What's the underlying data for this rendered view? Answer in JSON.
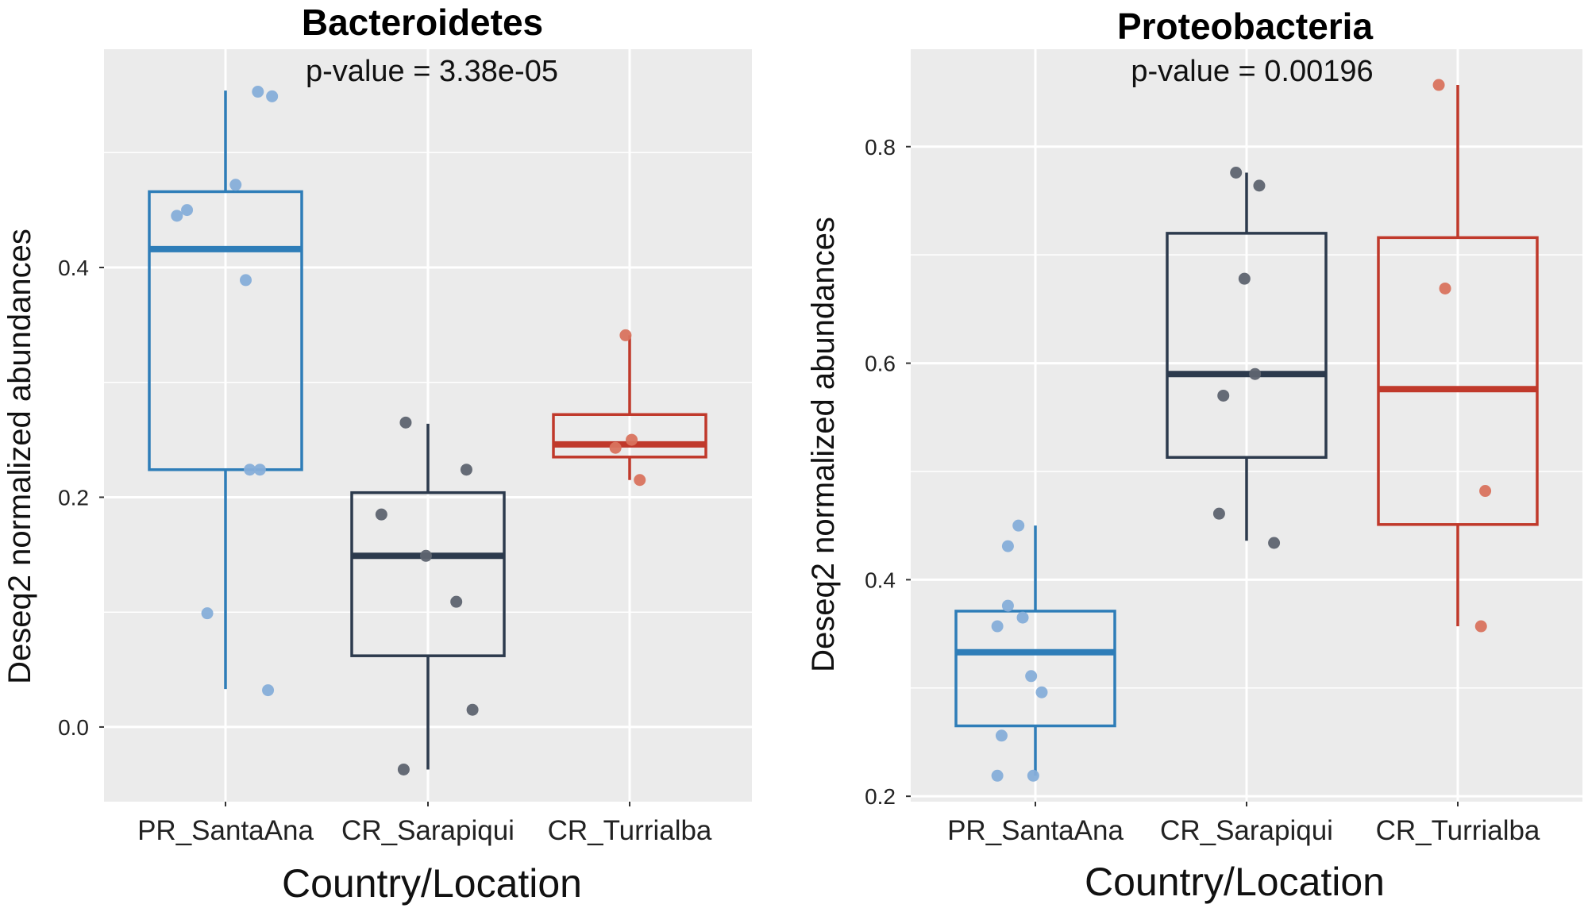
{
  "colors": {
    "panel_bg": "#EBEBEB",
    "grid": "#FFFFFF",
    "PR_SantaAna": "#2E7DB8",
    "PR_SantaAna_points": "#86AED9",
    "CR_Sarapiqui": "#2C3A4D",
    "CR_Sarapiqui_points": "#5E6470",
    "CR_Turrialba": "#C0392B",
    "CR_Turrialba_points": "#D9735E"
  },
  "chart_data": [
    {
      "type": "boxplot",
      "title": "Bacteroidetes",
      "annotation": "p-value = 3.38e-05",
      "xlabel": "Country/Location",
      "ylabel": "Deseq2 normalized abundances",
      "categories": [
        "PR_SantaAna",
        "CR_Sarapiqui",
        "CR_Turrialba"
      ],
      "ylim": [
        -0.065,
        0.59
      ],
      "yticks": [
        0.0,
        0.2,
        0.4
      ],
      "ytick_labels": [
        "0.0",
        "0.2",
        "0.4"
      ],
      "grid": true,
      "boxes": [
        {
          "category": "PR_SantaAna",
          "whisker_low": 0.033,
          "q1": 0.224,
          "median": 0.416,
          "q3": 0.466,
          "whisker_high": 0.554
        },
        {
          "category": "CR_Sarapiqui",
          "whisker_low": -0.037,
          "q1": 0.062,
          "median": 0.149,
          "q3": 0.204,
          "whisker_high": 0.264
        },
        {
          "category": "CR_Turrialba",
          "whisker_low": 0.215,
          "q1": 0.235,
          "median": 0.246,
          "q3": 0.272,
          "whisker_high": 0.341
        }
      ],
      "points": [
        {
          "category": "PR_SantaAna",
          "values": [
            0.553,
            0.549,
            0.472,
            0.45,
            0.445,
            0.389,
            0.224,
            0.224,
            0.099,
            0.032
          ],
          "jitter": [
            0.16,
            0.23,
            0.05,
            -0.19,
            -0.24,
            0.1,
            0.12,
            0.17,
            -0.09,
            0.21
          ]
        },
        {
          "category": "CR_Sarapiqui",
          "values": [
            0.265,
            0.224,
            0.185,
            0.149,
            0.109,
            0.015,
            -0.037
          ],
          "jitter": [
            -0.11,
            0.19,
            -0.23,
            -0.01,
            0.14,
            0.22,
            -0.12
          ]
        },
        {
          "category": "CR_Turrialba",
          "values": [
            0.341,
            0.25,
            0.243,
            0.215
          ],
          "jitter": [
            -0.02,
            0.01,
            -0.07,
            0.05
          ]
        }
      ]
    },
    {
      "type": "boxplot",
      "title": "Proteobacteria",
      "annotation": "p-value = 0.00196",
      "xlabel": "Country/Location",
      "ylabel": "Deseq2 normalized abundances",
      "categories": [
        "PR_SantaAna",
        "CR_Sarapiqui",
        "CR_Turrialba"
      ],
      "ylim": [
        0.195,
        0.89
      ],
      "yticks": [
        0.2,
        0.4,
        0.6,
        0.8
      ],
      "ytick_labels": [
        "0.2",
        "0.4",
        "0.6",
        "0.8"
      ],
      "grid": true,
      "boxes": [
        {
          "category": "PR_SantaAna",
          "whisker_low": 0.219,
          "q1": 0.265,
          "median": 0.333,
          "q3": 0.371,
          "whisker_high": 0.45
        },
        {
          "category": "CR_Sarapiqui",
          "whisker_low": 0.436,
          "q1": 0.513,
          "median": 0.59,
          "q3": 0.72,
          "whisker_high": 0.776
        },
        {
          "category": "CR_Turrialba",
          "whisker_low": 0.357,
          "q1": 0.451,
          "median": 0.576,
          "q3": 0.716,
          "whisker_high": 0.857
        }
      ],
      "points": [
        {
          "category": "PR_SantaAna",
          "values": [
            0.45,
            0.431,
            0.376,
            0.365,
            0.357,
            0.311,
            0.296,
            0.256,
            0.219,
            0.219
          ],
          "jitter": [
            -0.08,
            -0.13,
            -0.13,
            -0.06,
            -0.18,
            -0.02,
            0.03,
            -0.16,
            -0.18,
            -0.01
          ]
        },
        {
          "category": "CR_Sarapiqui",
          "values": [
            0.776,
            0.764,
            0.678,
            0.59,
            0.57,
            0.461,
            0.434
          ],
          "jitter": [
            -0.05,
            0.06,
            -0.01,
            0.04,
            -0.11,
            -0.13,
            0.13
          ]
        },
        {
          "category": "CR_Turrialba",
          "values": [
            0.857,
            0.669,
            0.482,
            0.357
          ],
          "jitter": [
            -0.09,
            -0.06,
            0.13,
            0.11
          ]
        }
      ]
    }
  ]
}
